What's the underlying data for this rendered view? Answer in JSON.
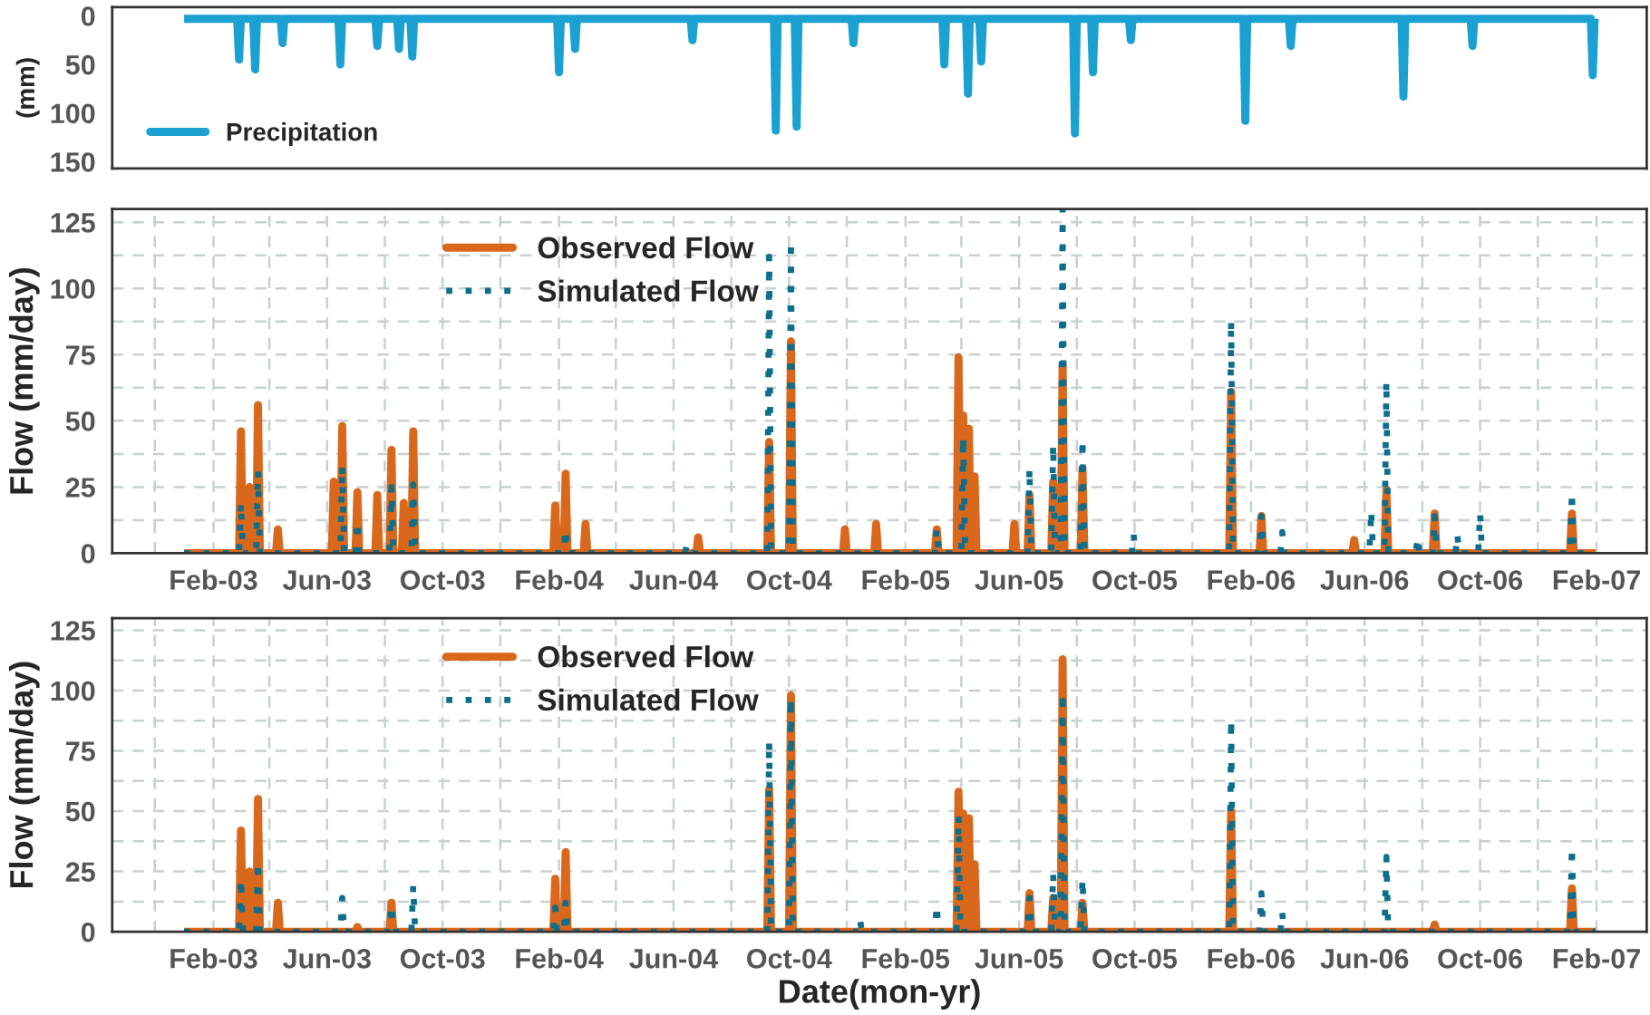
{
  "chart_data": [
    {
      "type": "line",
      "ylabel": "(mm)",
      "xlim": [
        "2002-10-17",
        "2007-03-26"
      ],
      "ylim": [
        157,
        -9
      ],
      "yticks": [
        0,
        50,
        100,
        150
      ],
      "tick_labels": "y",
      "grid": false,
      "legend": "bottom left",
      "line_style": "solid",
      "series": [
        {
          "name": "Precipitation",
          "color": "#1ba1d1",
          "x": [
            "2003-01-01",
            "2003-02-26",
            "2003-02-28",
            "2003-03-02",
            "2003-03-15",
            "2003-03-17",
            "2003-03-19",
            "2003-04-13",
            "2003-04-15",
            "2003-04-17",
            "2003-06-13",
            "2003-06-15",
            "2003-06-17",
            "2003-07-22",
            "2003-07-24",
            "2003-07-26",
            "2003-08-14",
            "2003-08-16",
            "2003-08-18",
            "2003-08-28",
            "2003-08-30",
            "2003-09-01",
            "2004-01-30",
            "2004-02-01",
            "2004-02-03",
            "2004-02-16",
            "2004-02-18",
            "2004-02-20",
            "2004-06-19",
            "2004-06-21",
            "2004-06-23",
            "2004-09-15",
            "2004-09-17",
            "2004-09-19",
            "2004-10-07",
            "2004-10-09",
            "2004-10-11",
            "2004-12-06",
            "2004-12-08",
            "2004-12-10",
            "2005-03-12",
            "2005-03-14",
            "2005-03-16",
            "2005-04-06",
            "2005-04-08",
            "2005-04-10",
            "2005-04-20",
            "2005-04-22",
            "2005-04-24",
            "2005-07-28",
            "2005-07-30",
            "2005-08-01",
            "2005-08-16",
            "2005-08-18",
            "2005-08-20",
            "2005-09-25",
            "2005-09-27",
            "2005-09-29",
            "2006-01-24",
            "2006-01-26",
            "2006-01-28",
            "2006-03-13",
            "2006-03-15",
            "2006-03-17",
            "2006-07-10",
            "2006-07-12",
            "2006-07-14",
            "2006-09-21",
            "2006-09-23",
            "2006-09-25",
            "2007-01-26",
            "2007-01-28",
            "2007-01-30"
          ],
          "values": [
            3,
            3,
            45,
            3,
            3,
            55,
            3,
            3,
            28,
            3,
            3,
            50,
            3,
            3,
            31,
            3,
            3,
            34,
            3,
            3,
            42,
            3,
            3,
            58,
            3,
            3,
            34,
            3,
            3,
            25,
            3,
            3,
            118,
            3,
            3,
            114,
            3,
            3,
            28,
            3,
            3,
            50,
            3,
            3,
            80,
            3,
            3,
            47,
            3,
            3,
            121,
            3,
            3,
            58,
            3,
            3,
            25,
            3,
            3,
            108,
            3,
            3,
            31,
            3,
            3,
            83,
            3,
            3,
            31,
            3,
            3,
            61,
            3
          ]
        }
      ]
    },
    {
      "type": "line",
      "ylabel": "Flow (mm/day)",
      "xlim": [
        "2002-10-17",
        "2007-03-26"
      ],
      "ylim": [
        0,
        130
      ],
      "xticks": [
        {
          "value": "2002-12-01",
          "label": null
        },
        {
          "value": "2003-02-01",
          "label": "Feb-03"
        },
        {
          "value": "2003-04-01",
          "label": null
        },
        {
          "value": "2003-06-01",
          "label": "Jun-03"
        },
        {
          "value": "2003-08-01",
          "label": null
        },
        {
          "value": "2003-10-01",
          "label": "Oct-03"
        },
        {
          "value": "2003-12-01",
          "label": null
        },
        {
          "value": "2004-02-01",
          "label": "Feb-04"
        },
        {
          "value": "2004-04-01",
          "label": null
        },
        {
          "value": "2004-06-01",
          "label": "Jun-04"
        },
        {
          "value": "2004-08-01",
          "label": null
        },
        {
          "value": "2004-10-01",
          "label": "Oct-04"
        },
        {
          "value": "2004-12-01",
          "label": null
        },
        {
          "value": "2005-02-01",
          "label": "Feb-05"
        },
        {
          "value": "2005-04-01",
          "label": null
        },
        {
          "value": "2005-06-01",
          "label": "Jun-05"
        },
        {
          "value": "2005-08-01",
          "label": null
        },
        {
          "value": "2005-10-01",
          "label": "Oct-05"
        },
        {
          "value": "2005-12-01",
          "label": null
        },
        {
          "value": "2006-02-01",
          "label": "Feb-06"
        },
        {
          "value": "2006-04-01",
          "label": null
        },
        {
          "value": "2006-06-01",
          "label": "Jun-06"
        },
        {
          "value": "2006-08-01",
          "label": null
        },
        {
          "value": "2006-10-01",
          "label": "Oct-06"
        },
        {
          "value": "2006-12-01",
          "label": null
        },
        {
          "value": "2007-02-01",
          "label": "Feb-07"
        }
      ],
      "yticks": [
        0,
        {
          "value": 12.5,
          "label": null
        },
        25,
        {
          "value": 37.5,
          "label": null
        },
        50,
        {
          "value": 62.5,
          "label": null
        },
        75,
        {
          "value": 87.5,
          "label": null
        },
        100,
        {
          "value": 112.5,
          "label": null
        },
        125
      ],
      "grid": true,
      "legend": "top",
      "series": [
        {
          "name": "Observed Flow",
          "color": "#d9681c",
          "line_style": "solid",
          "x": [
            "2003-01-01",
            "2003-02-28",
            "2003-03-02",
            "2003-03-04",
            "2003-03-09",
            "2003-03-11",
            "2003-03-13",
            "2003-03-18",
            "2003-03-20",
            "2003-03-22",
            "2003-04-08",
            "2003-04-10",
            "2003-04-12",
            "2003-06-06",
            "2003-06-08",
            "2003-06-10",
            "2003-06-15",
            "2003-06-17",
            "2003-06-19",
            "2003-07-01",
            "2003-07-03",
            "2003-07-05",
            "2003-07-22",
            "2003-07-24",
            "2003-07-26",
            "2003-08-06",
            "2003-08-08",
            "2003-08-10",
            "2003-08-19",
            "2003-08-21",
            "2003-08-23",
            "2003-08-29",
            "2003-08-31",
            "2003-09-02",
            "2004-01-26",
            "2004-01-28",
            "2004-01-30",
            "2004-02-06",
            "2004-02-08",
            "2004-02-10",
            "2004-02-27",
            "2004-02-29",
            "2004-03-02",
            "2004-06-25",
            "2004-06-27",
            "2004-06-29",
            "2004-09-08",
            "2004-09-10",
            "2004-09-12",
            "2004-10-01",
            "2004-10-03",
            "2004-10-05",
            "2004-11-27",
            "2004-11-29",
            "2004-12-01",
            "2004-12-30",
            "2005-01-01",
            "2005-01-03",
            "2005-03-04",
            "2005-03-06",
            "2005-03-08",
            "2005-03-27",
            "2005-03-29",
            "2005-03-31",
            "2005-04-01",
            "2005-04-03",
            "2005-04-05",
            "2005-04-07",
            "2005-04-09",
            "2005-04-11",
            "2005-04-13",
            "2005-04-15",
            "2005-04-17",
            "2005-05-25",
            "2005-05-27",
            "2005-05-29",
            "2005-06-10",
            "2005-06-12",
            "2005-06-14",
            "2005-07-05",
            "2005-07-07",
            "2005-07-09",
            "2005-07-15",
            "2005-07-17",
            "2005-07-19",
            "2005-08-05",
            "2005-08-07",
            "2005-08-09",
            "2006-01-09",
            "2006-01-11",
            "2006-01-13",
            "2006-02-10",
            "2006-02-12",
            "2006-02-14",
            "2006-05-19",
            "2006-05-21",
            "2006-05-23",
            "2006-06-22",
            "2006-06-24",
            "2006-06-26",
            "2006-08-12",
            "2006-08-14",
            "2006-08-16",
            "2007-01-04",
            "2007-01-06",
            "2007-01-08",
            "2007-01-31"
          ],
          "values": [
            0,
            0,
            46,
            0,
            0,
            25,
            0,
            0,
            56,
            0,
            0,
            9,
            0,
            0,
            27,
            0,
            0,
            48,
            0,
            0,
            23,
            0,
            0,
            22,
            0,
            0,
            39,
            0,
            0,
            19,
            0,
            0,
            46,
            0,
            0,
            18,
            0,
            0,
            30,
            0,
            0,
            11,
            0,
            0,
            6,
            0,
            0,
            42,
            0,
            0,
            80,
            0,
            0,
            9,
            0,
            0,
            11,
            0,
            0,
            9,
            0,
            0,
            74,
            0,
            0,
            52,
            0,
            0,
            47,
            0,
            0,
            29,
            0,
            0,
            11,
            0,
            0,
            22,
            0,
            0,
            27,
            0,
            0,
            71,
            0,
            0,
            32,
            0,
            0,
            61,
            0,
            0,
            14,
            0,
            0,
            5,
            0,
            0,
            24,
            0,
            0,
            15,
            0,
            0,
            15,
            0,
            0
          ]
        },
        {
          "name": "Simulated Flow",
          "color": "#0c6e8c",
          "line_style": "dotted",
          "x": [
            "2003-01-01",
            "2003-02-28",
            "2003-03-02",
            "2003-03-04",
            "2003-03-18",
            "2003-03-20",
            "2003-03-22",
            "2003-06-15",
            "2003-06-17",
            "2003-06-19",
            "2003-07-01",
            "2003-07-03",
            "2003-07-05",
            "2003-08-06",
            "2003-08-08",
            "2003-08-10",
            "2003-08-29",
            "2003-08-31",
            "2003-09-02",
            "2004-02-06",
            "2004-02-08",
            "2004-02-10",
            "2004-06-13",
            "2004-06-15",
            "2004-06-17",
            "2004-09-08",
            "2004-09-10",
            "2004-09-12",
            "2004-10-01",
            "2004-10-03",
            "2004-10-05",
            "2005-03-04",
            "2005-03-06",
            "2005-03-08",
            "2005-04-01",
            "2005-04-03",
            "2005-04-05",
            "2005-06-10",
            "2005-06-12",
            "2005-06-14",
            "2005-07-05",
            "2005-07-07",
            "2005-07-09",
            "2005-07-15",
            "2005-07-17",
            "2005-07-19",
            "2005-08-05",
            "2005-08-07",
            "2005-08-09",
            "2005-09-28",
            "2005-09-30",
            "2005-10-02",
            "2006-01-09",
            "2006-01-11",
            "2006-01-13",
            "2006-02-10",
            "2006-02-12",
            "2006-02-14",
            "2006-03-04",
            "2006-03-06",
            "2006-03-08",
            "2006-06-06",
            "2006-06-08",
            "2006-06-10",
            "2006-06-22",
            "2006-06-24",
            "2006-06-26",
            "2006-07-25",
            "2006-07-27",
            "2006-07-29",
            "2006-08-12",
            "2006-08-14",
            "2006-08-16",
            "2006-09-05",
            "2006-09-07",
            "2006-09-09",
            "2006-09-29",
            "2006-10-01",
            "2006-10-03",
            "2007-01-04",
            "2007-01-06",
            "2007-01-08",
            "2007-01-31"
          ],
          "values": [
            0,
            0,
            19,
            0,
            0,
            31,
            0,
            0,
            33,
            0,
            0,
            12,
            0,
            0,
            25,
            0,
            0,
            26,
            0,
            0,
            9,
            0,
            0,
            3,
            0,
            0,
            112,
            0,
            0,
            118,
            0,
            0,
            9,
            0,
            0,
            44,
            0,
            0,
            32,
            0,
            0,
            41,
            0,
            0,
            130,
            0,
            0,
            43,
            0,
            0,
            7,
            0,
            0,
            88,
            0,
            0,
            14,
            0,
            0,
            8,
            0,
            0,
            16,
            0,
            0,
            65,
            0,
            0,
            6,
            0,
            0,
            14,
            0,
            0,
            7,
            0,
            0,
            15,
            0,
            0,
            23,
            0,
            0
          ]
        }
      ]
    },
    {
      "type": "line",
      "ylabel": "Flow (mm/day)",
      "xlabel": "Date(mon-yr)",
      "xlim": [
        "2002-10-17",
        "2007-03-26"
      ],
      "ylim": [
        0,
        130
      ],
      "xticks": [
        {
          "value": "2002-12-01",
          "label": null
        },
        {
          "value": "2003-02-01",
          "label": "Feb-03"
        },
        {
          "value": "2003-04-01",
          "label": null
        },
        {
          "value": "2003-06-01",
          "label": "Jun-03"
        },
        {
          "value": "2003-08-01",
          "label": null
        },
        {
          "value": "2003-10-01",
          "label": "Oct-03"
        },
        {
          "value": "2003-12-01",
          "label": null
        },
        {
          "value": "2004-02-01",
          "label": "Feb-04"
        },
        {
          "value": "2004-04-01",
          "label": null
        },
        {
          "value": "2004-06-01",
          "label": "Jun-04"
        },
        {
          "value": "2004-08-01",
          "label": null
        },
        {
          "value": "2004-10-01",
          "label": "Oct-04"
        },
        {
          "value": "2004-12-01",
          "label": null
        },
        {
          "value": "2005-02-01",
          "label": "Feb-05"
        },
        {
          "value": "2005-04-01",
          "label": null
        },
        {
          "value": "2005-06-01",
          "label": "Jun-05"
        },
        {
          "value": "2005-08-01",
          "label": null
        },
        {
          "value": "2005-10-01",
          "label": "Oct-05"
        },
        {
          "value": "2005-12-01",
          "label": null
        },
        {
          "value": "2006-02-01",
          "label": "Feb-06"
        },
        {
          "value": "2006-04-01",
          "label": null
        },
        {
          "value": "2006-06-01",
          "label": "Jun-06"
        },
        {
          "value": "2006-08-01",
          "label": null
        },
        {
          "value": "2006-10-01",
          "label": "Oct-06"
        },
        {
          "value": "2006-12-01",
          "label": null
        },
        {
          "value": "2007-02-01",
          "label": "Feb-07"
        }
      ],
      "yticks": [
        0,
        {
          "value": 12.5,
          "label": null
        },
        25,
        {
          "value": 37.5,
          "label": null
        },
        50,
        {
          "value": 62.5,
          "label": null
        },
        75,
        {
          "value": 87.5,
          "label": null
        },
        100,
        {
          "value": 112.5,
          "label": null
        },
        125
      ],
      "grid": true,
      "legend": "top",
      "series": [
        {
          "name": "Observed Flow",
          "color": "#d9681c",
          "line_style": "solid",
          "x": [
            "2003-01-01",
            "2003-02-28",
            "2003-03-02",
            "2003-03-04",
            "2003-03-09",
            "2003-03-11",
            "2003-03-13",
            "2003-03-18",
            "2003-03-20",
            "2003-03-22",
            "2003-04-08",
            "2003-04-10",
            "2003-04-12",
            "2003-07-01",
            "2003-07-03",
            "2003-07-05",
            "2003-08-06",
            "2003-08-08",
            "2003-08-10",
            "2004-01-26",
            "2004-01-28",
            "2004-01-30",
            "2004-02-06",
            "2004-02-08",
            "2004-02-10",
            "2004-09-08",
            "2004-09-10",
            "2004-09-12",
            "2004-10-01",
            "2004-10-03",
            "2004-10-05",
            "2005-03-27",
            "2005-03-29",
            "2005-03-31",
            "2005-04-01",
            "2005-04-03",
            "2005-04-05",
            "2005-04-07",
            "2005-04-09",
            "2005-04-11",
            "2005-04-13",
            "2005-04-15",
            "2005-04-17",
            "2005-06-10",
            "2005-06-12",
            "2005-06-14",
            "2005-07-05",
            "2005-07-07",
            "2005-07-09",
            "2005-07-15",
            "2005-07-17",
            "2005-07-19",
            "2005-08-05",
            "2005-08-07",
            "2005-08-09",
            "2006-01-09",
            "2006-01-11",
            "2006-01-13",
            "2006-08-12",
            "2006-08-14",
            "2006-08-16",
            "2007-01-04",
            "2007-01-06",
            "2007-01-08",
            "2007-01-31"
          ],
          "values": [
            0,
            0,
            42,
            0,
            0,
            25,
            0,
            0,
            55,
            0,
            0,
            12,
            0,
            0,
            2,
            0,
            0,
            12,
            0,
            0,
            22,
            0,
            0,
            33,
            0,
            0,
            59,
            0,
            0,
            98,
            0,
            0,
            58,
            0,
            0,
            49,
            0,
            0,
            47,
            0,
            0,
            28,
            0,
            0,
            16,
            0,
            0,
            14,
            0,
            0,
            113,
            0,
            0,
            12,
            0,
            0,
            50,
            0,
            0,
            3,
            0,
            0,
            18,
            0,
            0
          ]
        },
        {
          "name": "Simulated Flow",
          "color": "#0c6e8c",
          "line_style": "dotted",
          "x": [
            "2003-01-01",
            "2003-02-28",
            "2003-03-02",
            "2003-03-04",
            "2003-03-18",
            "2003-03-20",
            "2003-03-22",
            "2003-06-15",
            "2003-06-17",
            "2003-06-19",
            "2003-08-06",
            "2003-08-08",
            "2003-08-10",
            "2003-08-29",
            "2003-08-31",
            "2003-09-02",
            "2004-01-26",
            "2004-01-28",
            "2004-01-30",
            "2004-02-06",
            "2004-02-08",
            "2004-02-10",
            "2004-09-08",
            "2004-09-10",
            "2004-09-12",
            "2004-10-01",
            "2004-10-03",
            "2004-10-05",
            "2004-12-13",
            "2004-12-15",
            "2004-12-17",
            "2005-03-04",
            "2005-03-06",
            "2005-03-08",
            "2005-03-27",
            "2005-03-29",
            "2005-03-31",
            "2005-06-10",
            "2005-06-12",
            "2005-06-14",
            "2005-07-05",
            "2005-07-07",
            "2005-07-09",
            "2005-07-15",
            "2005-07-17",
            "2005-07-19",
            "2005-08-05",
            "2005-08-07",
            "2005-08-09",
            "2006-01-09",
            "2006-01-11",
            "2006-01-13",
            "2006-02-10",
            "2006-02-12",
            "2006-02-14",
            "2006-03-04",
            "2006-03-06",
            "2006-03-08",
            "2006-06-22",
            "2006-06-24",
            "2006-06-26",
            "2007-01-04",
            "2007-01-06",
            "2007-01-08",
            "2007-01-31"
          ],
          "values": [
            0,
            0,
            22,
            0,
            0,
            29,
            0,
            0,
            14,
            0,
            0,
            11,
            0,
            0,
            19,
            0,
            0,
            10,
            0,
            0,
            12,
            0,
            0,
            79,
            0,
            0,
            97,
            0,
            0,
            5,
            0,
            0,
            11,
            0,
            0,
            48,
            0,
            0,
            14,
            0,
            0,
            24,
            0,
            0,
            99,
            0,
            0,
            22,
            0,
            0,
            88,
            0,
            0,
            16,
            0,
            0,
            8,
            0,
            0,
            31,
            0,
            0,
            35,
            0,
            0
          ]
        }
      ]
    }
  ]
}
